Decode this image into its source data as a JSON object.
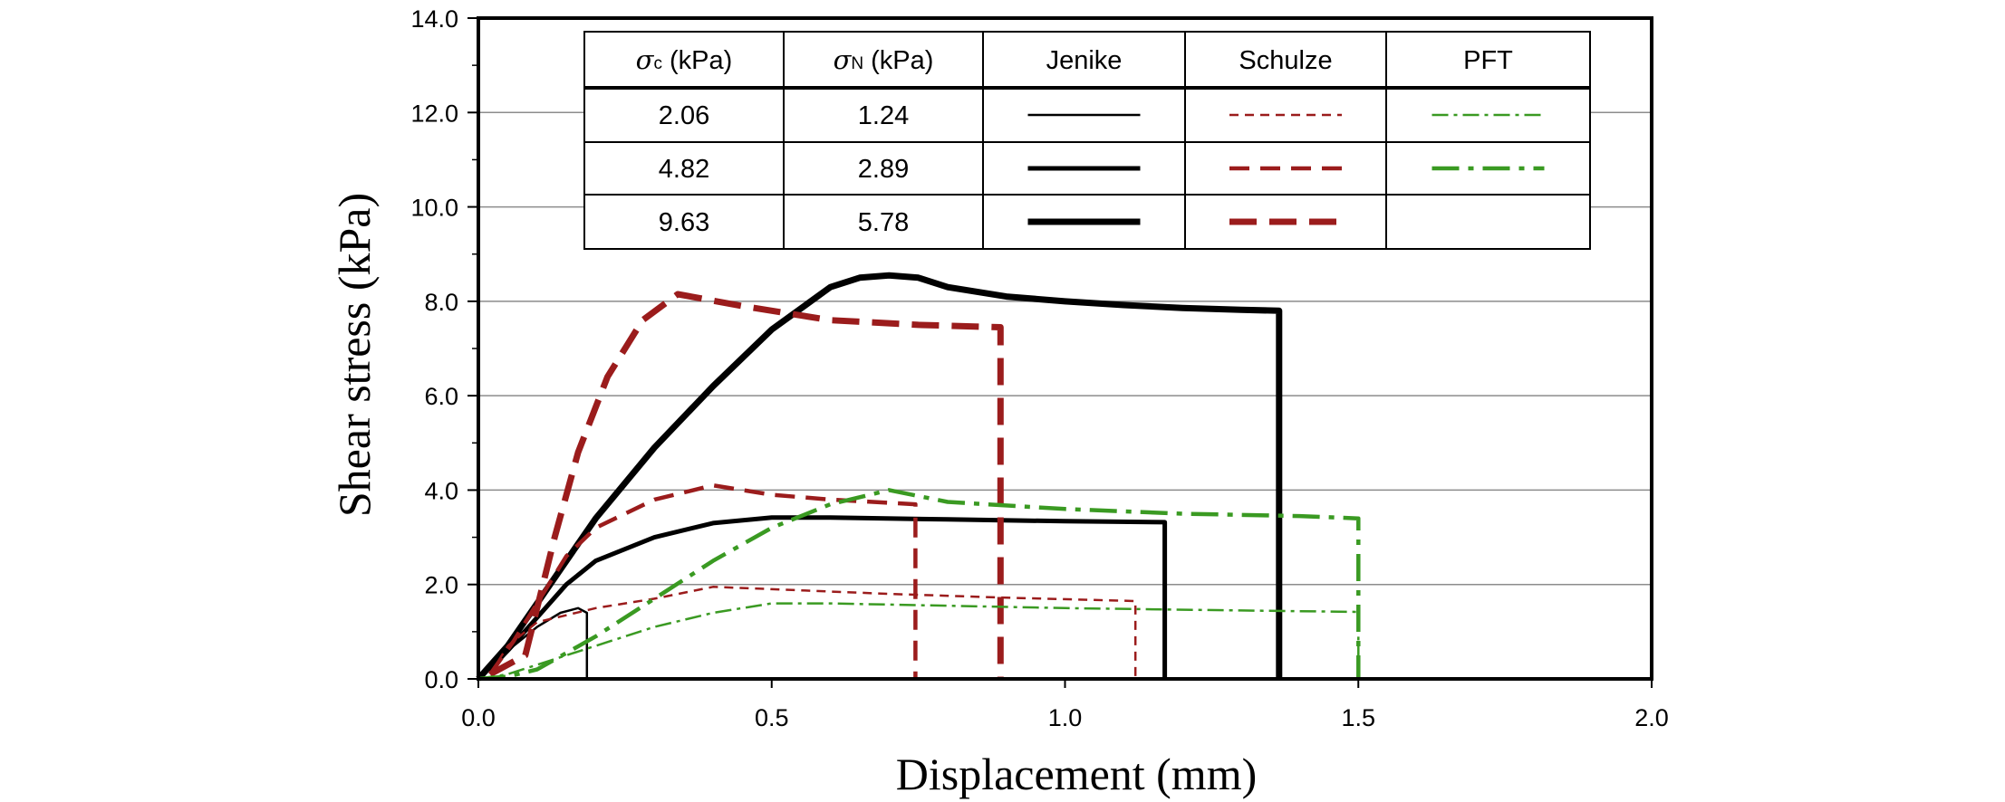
{
  "chart_data": {
    "type": "line",
    "xlabel": "Displacement (mm)",
    "ylabel": "Shear stress (kPa)",
    "xlim": [
      0,
      2.0
    ],
    "ylim": [
      0,
      14.0
    ],
    "x_ticks": [
      "0.0",
      "0.5",
      "1.0",
      "1.5",
      "2.0"
    ],
    "y_ticks": [
      "0.0",
      "2.0",
      "4.0",
      "6.0",
      "8.0",
      "10.0",
      "12.0",
      "14.0"
    ],
    "grid": "horizontal",
    "legend": {
      "placement": "top",
      "headers": [
        {
          "sym": "σ",
          "sub": "c",
          "unit": " (kPa)"
        },
        {
          "sym": "σ",
          "sub": "N",
          "unit": " (kPa)"
        },
        {
          "text": "Jenike",
          "color": "#000000"
        },
        {
          "text": "Schulze",
          "color": "#9b1c1c"
        },
        {
          "text": "PFT",
          "color": "#3a9a22"
        }
      ],
      "rows": [
        {
          "sigma_c": "2.06",
          "sigma_n": "1.24"
        },
        {
          "sigma_c": "4.82",
          "sigma_n": "2.89"
        },
        {
          "sigma_c": "9.63",
          "sigma_n": "5.78"
        }
      ]
    },
    "series": [
      {
        "tester": "Jenike",
        "row": 0,
        "color": "#000000",
        "width": 2.5,
        "dash": "",
        "points": [
          [
            0,
            0
          ],
          [
            0.03,
            0.3
          ],
          [
            0.06,
            0.7
          ],
          [
            0.1,
            1.1
          ],
          [
            0.14,
            1.4
          ],
          [
            0.17,
            1.5
          ],
          [
            0.185,
            1.4
          ],
          [
            0.185,
            0
          ]
        ]
      },
      {
        "tester": "Jenike",
        "row": 1,
        "color": "#000000",
        "width": 5,
        "dash": "",
        "points": [
          [
            0,
            0
          ],
          [
            0.05,
            0.6
          ],
          [
            0.1,
            1.3
          ],
          [
            0.15,
            2.0
          ],
          [
            0.2,
            2.5
          ],
          [
            0.3,
            3.0
          ],
          [
            0.4,
            3.3
          ],
          [
            0.5,
            3.42
          ],
          [
            0.6,
            3.42
          ],
          [
            0.8,
            3.38
          ],
          [
            1.0,
            3.34
          ],
          [
            1.17,
            3.32
          ],
          [
            1.17,
            0
          ]
        ]
      },
      {
        "tester": "Jenike",
        "row": 2,
        "color": "#000000",
        "width": 7,
        "dash": "",
        "points": [
          [
            0,
            0
          ],
          [
            0.05,
            0.7
          ],
          [
            0.1,
            1.6
          ],
          [
            0.15,
            2.5
          ],
          [
            0.2,
            3.4
          ],
          [
            0.3,
            4.9
          ],
          [
            0.4,
            6.2
          ],
          [
            0.5,
            7.4
          ],
          [
            0.6,
            8.3
          ],
          [
            0.65,
            8.5
          ],
          [
            0.7,
            8.55
          ],
          [
            0.75,
            8.5
          ],
          [
            0.8,
            8.3
          ],
          [
            0.9,
            8.1
          ],
          [
            1.0,
            8.0
          ],
          [
            1.1,
            7.92
          ],
          [
            1.2,
            7.86
          ],
          [
            1.3,
            7.82
          ],
          [
            1.365,
            7.8
          ],
          [
            1.365,
            0
          ]
        ]
      },
      {
        "tester": "Schulze",
        "row": 0,
        "color": "#9b1c1c",
        "width": 2.5,
        "dash": "10,7",
        "points": [
          [
            0.02,
            0.1
          ],
          [
            0.05,
            0.7
          ],
          [
            0.1,
            1.2
          ],
          [
            0.2,
            1.5
          ],
          [
            0.3,
            1.7
          ],
          [
            0.4,
            1.95
          ],
          [
            0.5,
            1.9
          ],
          [
            0.7,
            1.8
          ],
          [
            0.9,
            1.72
          ],
          [
            1.12,
            1.65
          ],
          [
            1.12,
            0
          ]
        ]
      },
      {
        "tester": "Schulze",
        "row": 1,
        "color": "#9b1c1c",
        "width": 4.5,
        "dash": "22,12",
        "points": [
          [
            0.02,
            0.1
          ],
          [
            0.06,
            0.8
          ],
          [
            0.1,
            1.6
          ],
          [
            0.15,
            2.6
          ],
          [
            0.2,
            3.2
          ],
          [
            0.3,
            3.8
          ],
          [
            0.4,
            4.1
          ],
          [
            0.5,
            3.9
          ],
          [
            0.6,
            3.8
          ],
          [
            0.745,
            3.7
          ],
          [
            0.745,
            0
          ]
        ]
      },
      {
        "tester": "Schulze",
        "row": 2,
        "color": "#9b1c1c",
        "width": 7,
        "dash": "30,14",
        "points": [
          [
            0.02,
            0.1
          ],
          [
            0.08,
            0.5
          ],
          [
            0.1,
            1.5
          ],
          [
            0.13,
            3.0
          ],
          [
            0.17,
            4.8
          ],
          [
            0.22,
            6.4
          ],
          [
            0.28,
            7.6
          ],
          [
            0.34,
            8.15
          ],
          [
            0.45,
            7.9
          ],
          [
            0.6,
            7.6
          ],
          [
            0.75,
            7.5
          ],
          [
            0.89,
            7.45
          ],
          [
            0.89,
            0
          ]
        ]
      },
      {
        "tester": "PFT",
        "row": 0,
        "color": "#3a9a22",
        "width": 2.5,
        "dash": "18,6,4,6",
        "points": [
          [
            0,
            0
          ],
          [
            0.05,
            0.1
          ],
          [
            0.1,
            0.3
          ],
          [
            0.2,
            0.7
          ],
          [
            0.3,
            1.1
          ],
          [
            0.4,
            1.4
          ],
          [
            0.5,
            1.6
          ],
          [
            0.6,
            1.6
          ],
          [
            0.8,
            1.55
          ],
          [
            1.0,
            1.5
          ],
          [
            1.3,
            1.45
          ],
          [
            1.5,
            1.42
          ],
          [
            1.5,
            0
          ]
        ]
      },
      {
        "tester": "PFT",
        "row": 1,
        "color": "#3a9a22",
        "width": 4.5,
        "dash": "30,10,6,10",
        "points": [
          [
            0,
            0
          ],
          [
            0.05,
            0.05
          ],
          [
            0.1,
            0.2
          ],
          [
            0.2,
            0.9
          ],
          [
            0.3,
            1.7
          ],
          [
            0.4,
            2.5
          ],
          [
            0.5,
            3.2
          ],
          [
            0.6,
            3.7
          ],
          [
            0.7,
            4.0
          ],
          [
            0.8,
            3.75
          ],
          [
            1.0,
            3.6
          ],
          [
            1.2,
            3.5
          ],
          [
            1.4,
            3.45
          ],
          [
            1.5,
            3.4
          ],
          [
            1.5,
            0
          ]
        ]
      }
    ]
  }
}
